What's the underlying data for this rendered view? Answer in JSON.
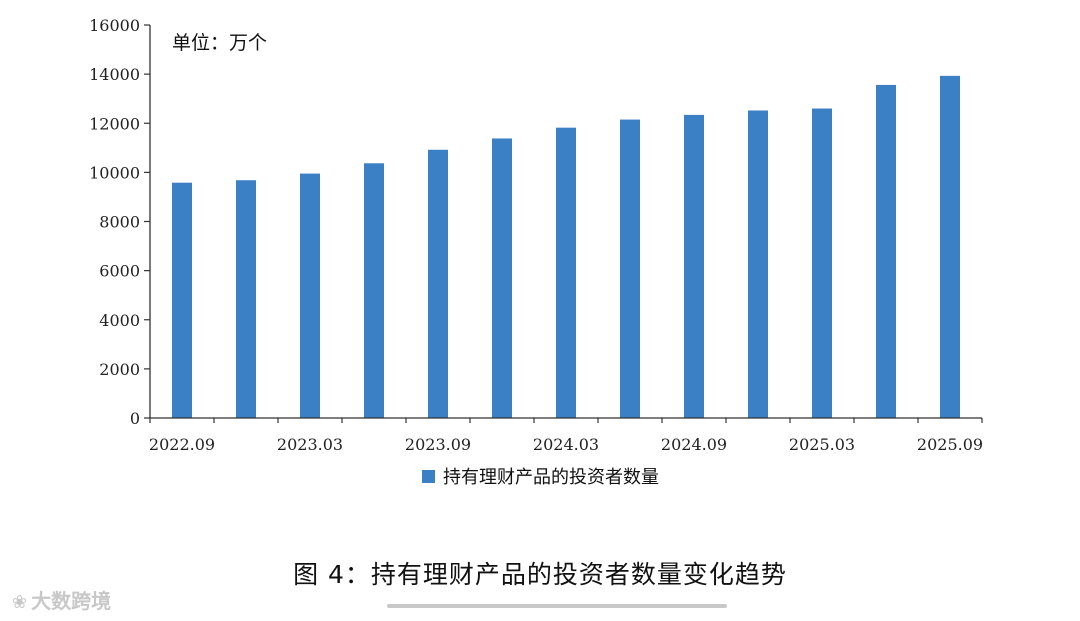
{
  "chart_data": {
    "type": "bar",
    "unit_label": "单位：万个",
    "categories": [
      "2022.09",
      "2022.12",
      "2023.03",
      "2023.06",
      "2023.09",
      "2023.12",
      "2024.03",
      "2024.06",
      "2024.09",
      "2024.12",
      "2025.03",
      "2025.06",
      "2025.09"
    ],
    "x_tick_labels": [
      "2022.09",
      "2023.03",
      "2023.09",
      "2024.03",
      "2024.09",
      "2025.03",
      "2025.09"
    ],
    "series": [
      {
        "name": "持有理财产品的投资者数量",
        "color": "#3b7fc4",
        "values": [
          9580,
          9680,
          9950,
          10370,
          10920,
          11380,
          11820,
          12150,
          12340,
          12520,
          12600,
          13560,
          13930
        ]
      }
    ],
    "ylim": [
      0,
      16000
    ],
    "y_ticks": [
      0,
      2000,
      4000,
      6000,
      8000,
      10000,
      12000,
      14000,
      16000
    ],
    "grid": false,
    "legend_position": "bottom"
  },
  "caption": "图 4：持有理财产品的投资者数量变化趋势",
  "watermark": {
    "text": "大数跨境",
    "icon": "logo-icon"
  }
}
